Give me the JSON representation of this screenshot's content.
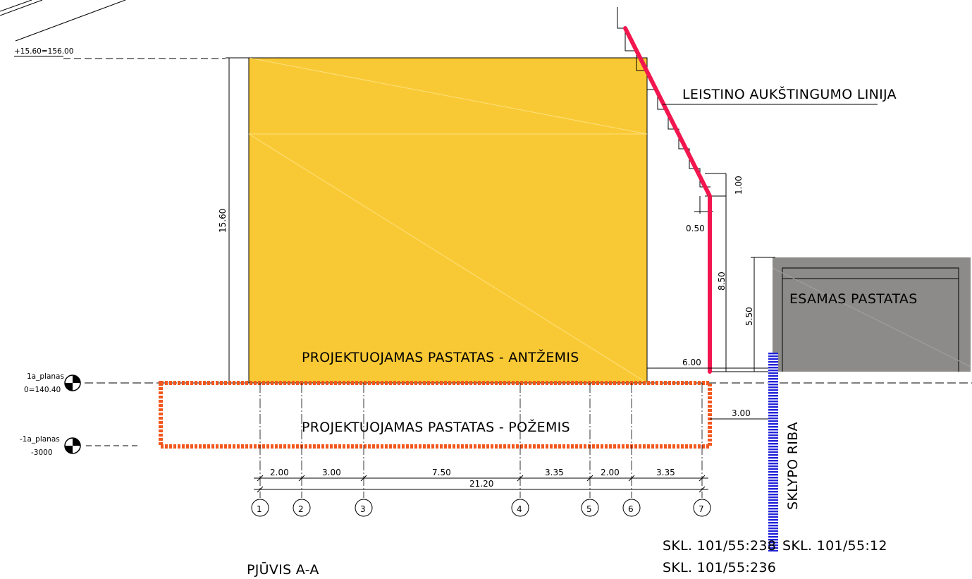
{
  "drawing": {
    "section_title": "PJŪVIS A-A",
    "colors": {
      "building_fill": "#f9c935",
      "existing_fill": "#8c8b89",
      "height_line": "#f2164f",
      "underground_outline": "#f2571d",
      "plot_boundary": "#2323d9"
    }
  },
  "labels": {
    "height_line": "LEISTINO AUKŠTINGUMO LINIJA",
    "building_above": "PROJEKTUOJAMAS PASTATAS - ANTŽEMIS",
    "building_below": "PROJEKTUOJAMAS PASTATAS - POŽEMIS",
    "existing_building": "ESAMAS PASTATAS",
    "plot_boundary": "SKLYPO RIBA",
    "plot_left_1": "SKL. 101/55:238",
    "plot_left_2": "SKL. 101/55:236",
    "plot_right": "SKL. 101/55:12"
  },
  "levels": {
    "top": "+15.60=156.00",
    "ground_name": "1a_planas",
    "ground_value": "0=140.40",
    "basement_name": "-1a_planas",
    "basement_value": "-3000"
  },
  "dimensions": {
    "building_height": "15.60",
    "step_height": "1.00",
    "step_offset": "0.50",
    "height_limit": "8.50",
    "existing_height": "5.50",
    "distance_to_existing": "6.00",
    "distance_to_boundary": "3.00",
    "total_width": "21.20",
    "spans": [
      "2.00",
      "3.00",
      "7.50",
      "3.35",
      "2.00",
      "3.35"
    ]
  },
  "axes": [
    "1",
    "2",
    "3",
    "4",
    "5",
    "6",
    "7"
  ]
}
